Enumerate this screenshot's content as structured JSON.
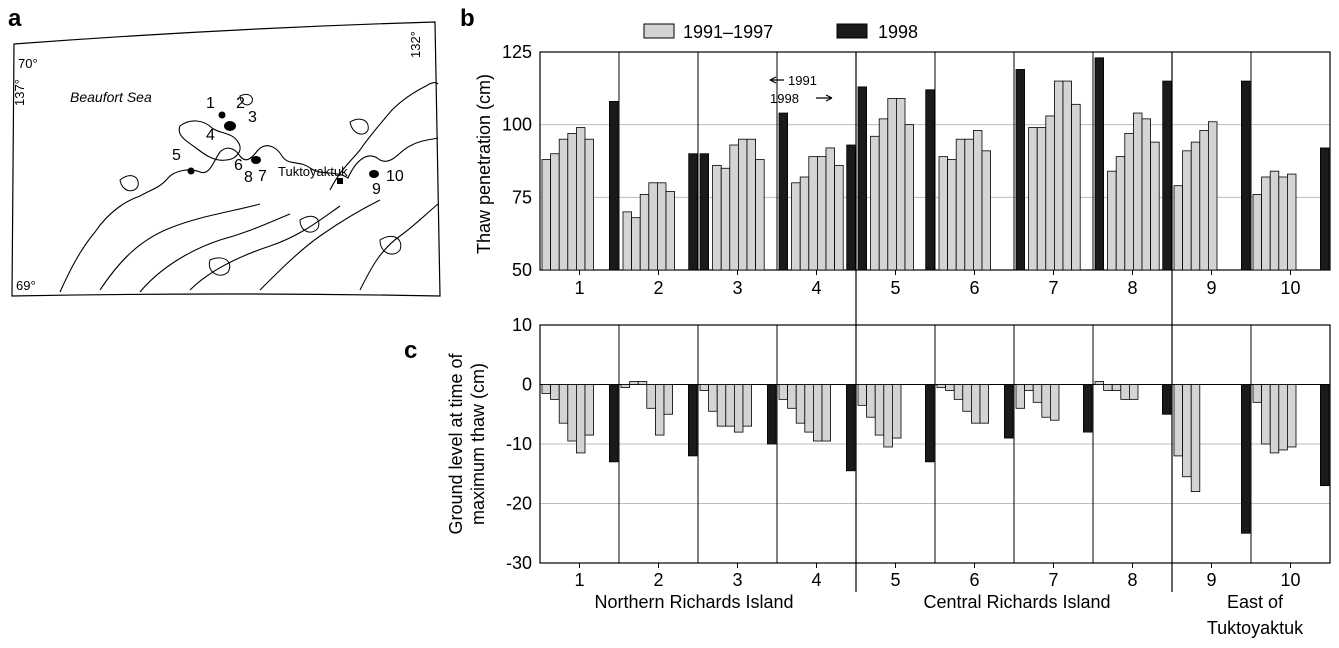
{
  "panel_labels": {
    "a": "a",
    "b": "b",
    "c": "c"
  },
  "legend": [
    {
      "label": "1991–1997",
      "color": "#d4d4d4"
    },
    {
      "label": "1998",
      "color": "#1a1a1a"
    }
  ],
  "map": {
    "sea_label": "Beaufort Sea",
    "town_label": "Tuktoyaktuk",
    "lat_top": "70°",
    "lat_bottom": "69°",
    "lon_left": "137°",
    "lon_right": "132°",
    "site_labels": [
      "1",
      "2",
      "3",
      "4",
      "5",
      "6",
      "7",
      "8",
      "9",
      "10"
    ]
  },
  "arrow_annotation": {
    "upper": "1991",
    "lower": "1998"
  },
  "group_labels": [
    {
      "text": "Northern Richards Island"
    },
    {
      "text": "Central  Richards Island"
    },
    {
      "text": "East of"
    },
    {
      "text": "Tuktoyaktuk"
    }
  ],
  "chart_data": [
    {
      "type": "bar",
      "panel": "b",
      "ylabel": "Thaw penetration (cm)",
      "ylim": [
        50,
        125
      ],
      "yticks": [
        50,
        75,
        100,
        125
      ],
      "grid": true,
      "categories": [
        "1",
        "2",
        "3",
        "4",
        "5",
        "6",
        "7",
        "8",
        "9",
        "10"
      ],
      "series": [
        {
          "name": "1991–1997",
          "values": [
            [
              88,
              90,
              95,
              97,
              99,
              95
            ],
            [
              70,
              68,
              76,
              80,
              80,
              77
            ],
            [
              86,
              85,
              93,
              95,
              95,
              88
            ],
            [
              80,
              82,
              89,
              89,
              92,
              86
            ],
            [
              96,
              102,
              109,
              109,
              100
            ],
            [
              89,
              88,
              95,
              95,
              98,
              91
            ],
            [
              99,
              99,
              103,
              115,
              115,
              107
            ],
            [
              84,
              89,
              97,
              104,
              102,
              94
            ],
            [
              79,
              91,
              94,
              98,
              101
            ],
            [
              76,
              82,
              84,
              82,
              83
            ]
          ]
        },
        {
          "name": "1998",
          "values": [
            108,
            null,
            90,
            104,
            113,
            null,
            119,
            123,
            115,
            92
          ]
        }
      ],
      "black_bar_position": [
        "end",
        "none",
        "start",
        "start",
        "start",
        "none",
        "start",
        "start",
        "end",
        "end"
      ],
      "extra_black_bars": [
        {
          "between": [
            "2",
            "3"
          ],
          "value": 90
        },
        {
          "between": [
            "4",
            "5"
          ],
          "value": 93
        },
        {
          "between": [
            "5",
            "6"
          ],
          "value": 112
        },
        {
          "between": [
            "8",
            "9"
          ],
          "value": 115
        }
      ]
    },
    {
      "type": "bar",
      "panel": "c",
      "ylabel": "Ground level at time of maximum thaw (cm)",
      "ylim": [
        -30,
        10
      ],
      "yticks": [
        -30,
        -20,
        -10,
        0,
        10
      ],
      "grid": true,
      "categories": [
        "1",
        "2",
        "3",
        "4",
        "5",
        "6",
        "7",
        "8",
        "9",
        "10"
      ],
      "series": [
        {
          "name": "1991–1997",
          "values": [
            [
              -1.5,
              -2.5,
              -6.5,
              -9.5,
              -11.5,
              -8.5
            ],
            [
              -0.5,
              0.5,
              0.5,
              -4,
              -8.5,
              -5
            ],
            [
              -1,
              -4.5,
              -7,
              -7,
              -8,
              -7
            ],
            [
              -2.5,
              -4,
              -6.5,
              -8,
              -9.5,
              -9.5
            ],
            [
              -3.5,
              -5.5,
              -8.5,
              -10.5,
              -9
            ],
            [
              -0.5,
              -1,
              -2.5,
              -4.5,
              -6.5,
              -6.5
            ],
            [
              -4,
              -1,
              -3,
              -5.5,
              -6
            ],
            [
              0.5,
              -1,
              -1,
              -2.5,
              -2.5
            ],
            [
              -12,
              -15.5,
              -18
            ],
            [
              -3,
              -10,
              -11.5,
              -11,
              -10.5
            ]
          ]
        },
        {
          "name": "1998",
          "values": [
            -13,
            -12,
            -10,
            -14.5,
            -13,
            -9,
            -8,
            -5,
            -25,
            -17
          ]
        }
      ],
      "black_bar_position": [
        "end",
        "end",
        "end",
        "end",
        "end",
        "end",
        "end",
        "end",
        "end",
        "end"
      ]
    }
  ]
}
